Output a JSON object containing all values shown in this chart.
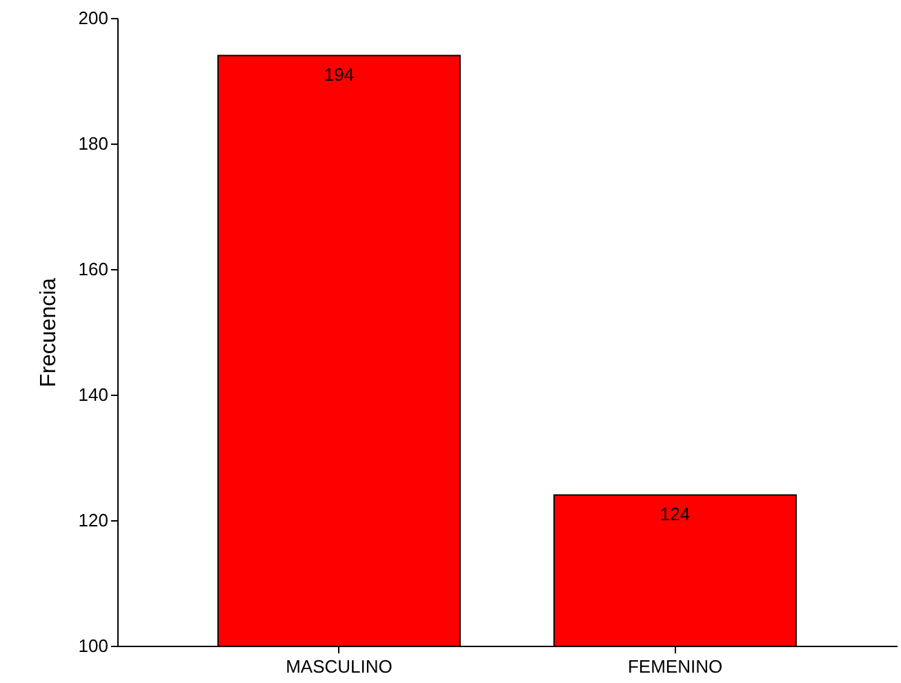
{
  "chart_data": {
    "type": "bar",
    "ylabel": "Frecuencia",
    "categories": [
      "MASCULINO",
      "FEMENINO"
    ],
    "values": [
      194,
      124
    ],
    "color": "#ff0000",
    "ylim": [
      100,
      200
    ],
    "yticks": [
      100,
      120,
      140,
      160,
      180,
      200
    ],
    "data_labels": true
  }
}
